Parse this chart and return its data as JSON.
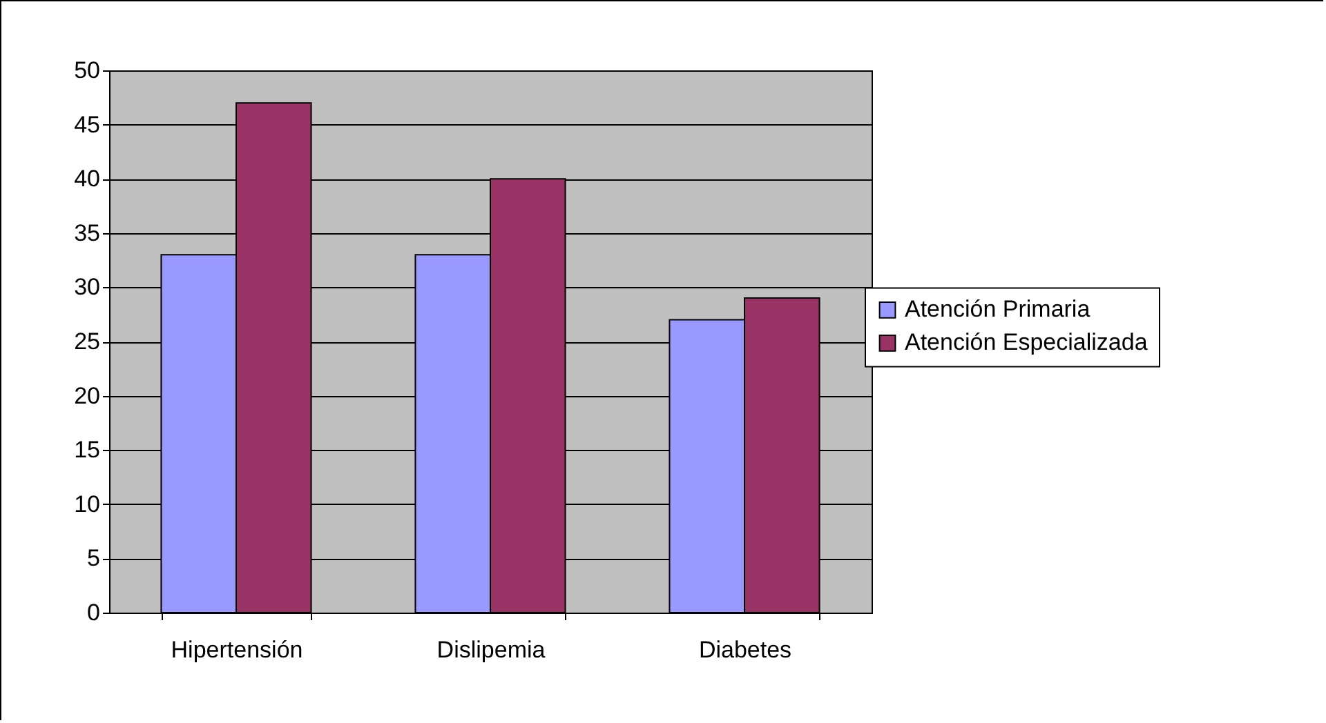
{
  "chart_data": {
    "type": "bar",
    "categories": [
      "Hipertensión",
      "Dislipemia",
      "Diabetes"
    ],
    "series": [
      {
        "name": "Atención Primaria",
        "color": "#9999ff",
        "values": [
          33,
          33,
          27
        ]
      },
      {
        "name": "Atención Especializada",
        "color": "#993366",
        "values": [
          47,
          40,
          29
        ]
      }
    ],
    "ylim": [
      0,
      50
    ],
    "yticks": [
      0,
      5,
      10,
      15,
      20,
      25,
      30,
      35,
      40,
      45,
      50
    ],
    "grid": "y",
    "legend": "right"
  }
}
